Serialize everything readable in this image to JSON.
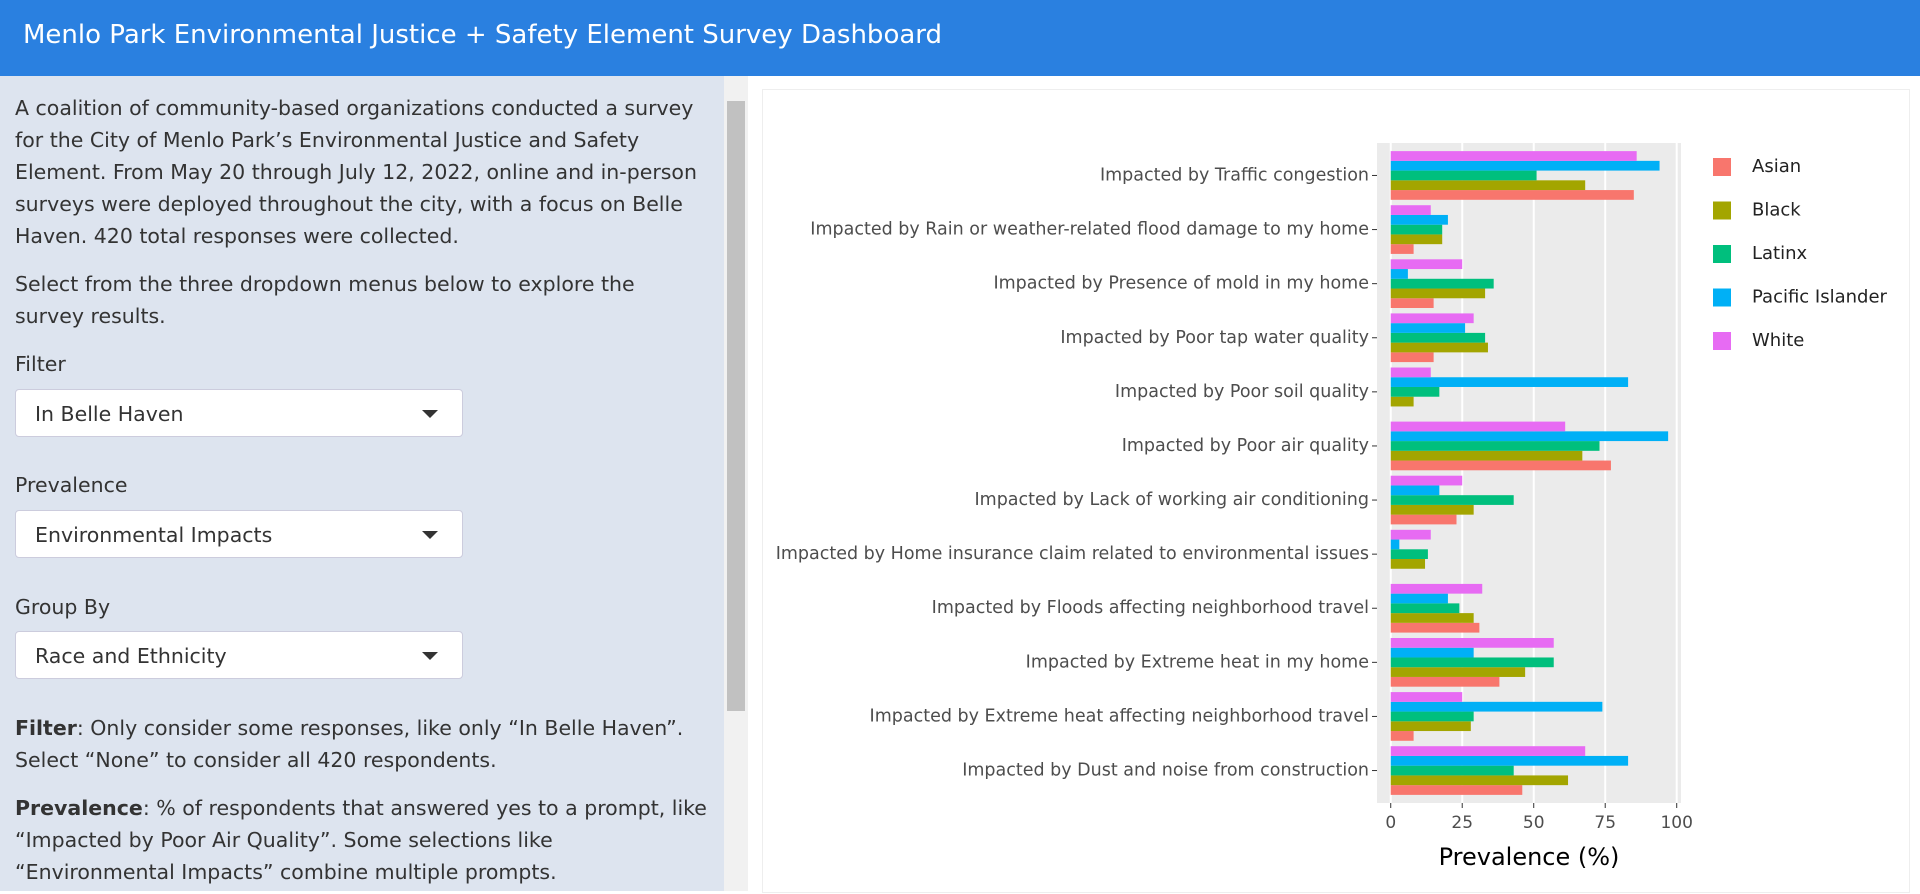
{
  "header": {
    "title": "Menlo Park Environmental Justice + Safety Element Survey Dashboard"
  },
  "sidebar": {
    "intro": "A coalition of community-based organizations conducted a survey for the City of Menlo Park’s Environmental Justice and Safety Element. From May 20 through July 12, 2022, online and in-person surveys were deployed throughout the city, with a focus on Belle Haven. 420 total responses were collected.",
    "instruction": "Select from the three dropdown menus below to explore the survey results.",
    "controls": [
      {
        "label": "Filter",
        "selected": "In Belle Haven"
      },
      {
        "label": "Prevalence",
        "selected": "Environmental Impacts"
      },
      {
        "label": "Group By",
        "selected": "Race and Ethnicity"
      }
    ],
    "notes": [
      {
        "term": "Filter",
        "text": ": Only consider some responses, like only “In Belle Haven”. Select “None” to consider all 420 respondents."
      },
      {
        "term": "Prevalence",
        "text": ": % of respondents that answered yes to a prompt, like “Impacted by Poor Air Quality”. Some selections like “Environmental Impacts” combine multiple prompts."
      }
    ]
  },
  "chart_data": {
    "type": "bar",
    "orientation": "horizontal",
    "x_label": "Prevalence (%)",
    "categories": [
      "Impacted by Traffic congestion",
      "Impacted by Rain or weather-related flood damage to my home",
      "Impacted by Presence of mold in my home",
      "Impacted by Poor tap water quality",
      "Impacted by Poor soil quality",
      "Impacted by Poor air quality",
      "Impacted by Lack of working air conditioning",
      "Impacted by Home insurance claim related to environmental issues",
      "Impacted by Floods affecting neighborhood travel",
      "Impacted by Extreme heat in my home",
      "Impacted by Extreme heat affecting neighborhood travel",
      "Impacted by Dust and noise from construction"
    ],
    "series": [
      {
        "name": "Asian",
        "color": "#F8766D",
        "values": [
          85,
          8,
          15,
          15,
          0,
          77,
          23,
          0,
          31,
          38,
          8,
          46
        ]
      },
      {
        "name": "Black",
        "color": "#A3A500",
        "values": [
          68,
          18,
          33,
          34,
          8,
          67,
          29,
          12,
          29,
          47,
          28,
          62
        ]
      },
      {
        "name": "Latinx",
        "color": "#00BF7D",
        "values": [
          51,
          18,
          36,
          33,
          17,
          73,
          43,
          13,
          24,
          57,
          29,
          43
        ]
      },
      {
        "name": "Pacific Islander",
        "color": "#00B0F6",
        "values": [
          94,
          20,
          6,
          26,
          83,
          97,
          17,
          3,
          20,
          29,
          74,
          83
        ]
      },
      {
        "name": "White",
        "color": "#E76BF3",
        "values": [
          86,
          14,
          25,
          29,
          14,
          61,
          25,
          14,
          32,
          57,
          25,
          68
        ]
      }
    ],
    "xlim": [
      -4.8,
      101.5
    ],
    "xticks": [
      0,
      25,
      50,
      75,
      100
    ],
    "grid": true,
    "legend": "right"
  }
}
